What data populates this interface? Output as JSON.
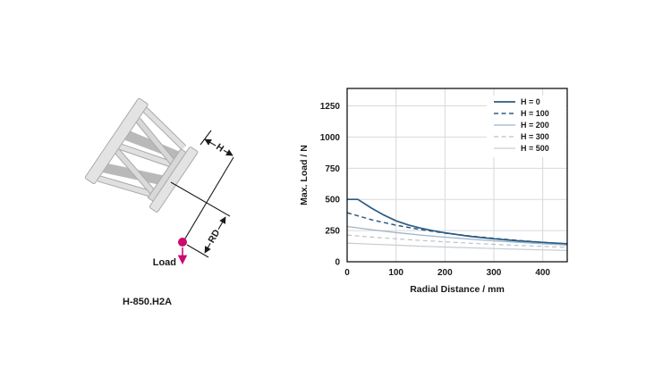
{
  "diagram": {
    "model_label": "H-850.H2A",
    "load_label": "Load",
    "h_label": "H",
    "rd_label": "RD",
    "accent_color": "#cc0a6e",
    "line_color": "#1a1a1a",
    "body_fill": "#e3e3e3",
    "body_shade": "#b9b9b9",
    "body_edge": "#aaaaaa"
  },
  "chart_data": {
    "type": "line",
    "title": "",
    "xlabel": "Radial Distance / mm",
    "ylabel": "Max. Load / N",
    "xlim": [
      0,
      450
    ],
    "ylim": [
      0,
      1390
    ],
    "x_ticks": [
      0,
      100,
      200,
      300,
      400
    ],
    "y_ticks": [
      0,
      250,
      500,
      750,
      1000,
      1250
    ],
    "grid": true,
    "grid_color": "#d9d9d9",
    "border_color": "#000000",
    "text_color": "#1a1a1a",
    "legend_position": "upper-right",
    "series": [
      {
        "name": "H = 0",
        "color": "#2b5c85",
        "dash": false,
        "width": 1.7,
        "points": [
          [
            0,
            500
          ],
          [
            22,
            500
          ],
          [
            50,
            430
          ],
          [
            75,
            375
          ],
          [
            100,
            328
          ],
          [
            125,
            295
          ],
          [
            150,
            270
          ],
          [
            175,
            249
          ],
          [
            200,
            232
          ],
          [
            250,
            204
          ],
          [
            300,
            184
          ],
          [
            350,
            168
          ],
          [
            400,
            155
          ],
          [
            450,
            144
          ]
        ]
      },
      {
        "name": "H = 100",
        "color": "#2b5c85",
        "dash": true,
        "width": 1.5,
        "points": [
          [
            0,
            393
          ],
          [
            50,
            337
          ],
          [
            100,
            293
          ],
          [
            150,
            258
          ],
          [
            200,
            230
          ],
          [
            250,
            207
          ],
          [
            300,
            188
          ],
          [
            350,
            171
          ],
          [
            400,
            156
          ],
          [
            450,
            142
          ]
        ]
      },
      {
        "name": "H = 200",
        "color": "#9fb4c7",
        "dash": false,
        "width": 1.3,
        "points": [
          [
            0,
            283
          ],
          [
            50,
            257
          ],
          [
            100,
            234
          ],
          [
            150,
            214
          ],
          [
            200,
            197
          ],
          [
            250,
            182
          ],
          [
            300,
            168
          ],
          [
            350,
            156
          ],
          [
            400,
            145
          ],
          [
            450,
            134
          ]
        ]
      },
      {
        "name": "H = 300",
        "color": "#b9c3cc",
        "dash": true,
        "width": 1.2,
        "points": [
          [
            0,
            214
          ],
          [
            50,
            198
          ],
          [
            100,
            184
          ],
          [
            150,
            171
          ],
          [
            200,
            160
          ],
          [
            250,
            149
          ],
          [
            300,
            140
          ],
          [
            350,
            131
          ],
          [
            400,
            123
          ],
          [
            450,
            115
          ]
        ]
      },
      {
        "name": "H = 500",
        "color": "#c6cdd2",
        "dash": false,
        "width": 1.2,
        "points": [
          [
            0,
            150
          ],
          [
            50,
            141
          ],
          [
            100,
            133
          ],
          [
            150,
            125
          ],
          [
            200,
            118
          ],
          [
            250,
            112
          ],
          [
            300,
            106
          ],
          [
            350,
            100
          ],
          [
            400,
            95
          ],
          [
            450,
            90
          ]
        ]
      }
    ]
  }
}
